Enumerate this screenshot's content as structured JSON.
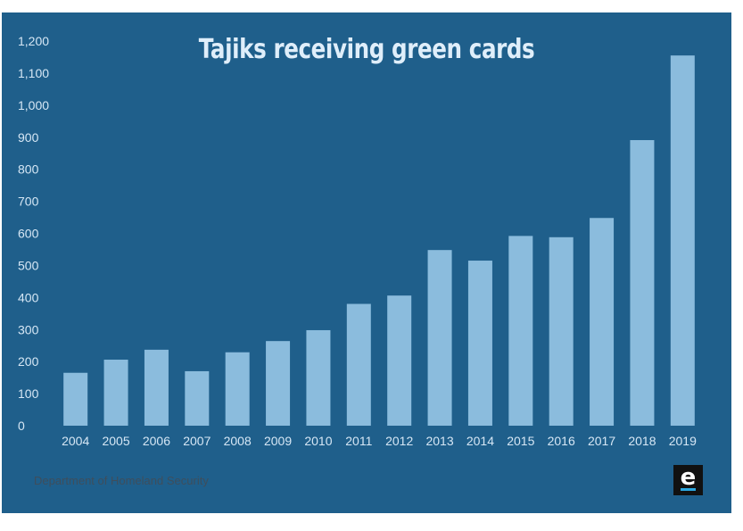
{
  "chart_data": {
    "type": "bar",
    "title": "Tajiks receiving green cards",
    "categories": [
      "2004",
      "2005",
      "2006",
      "2007",
      "2008",
      "2009",
      "2010",
      "2011",
      "2012",
      "2013",
      "2014",
      "2015",
      "2016",
      "2017",
      "2018",
      "2019"
    ],
    "values": [
      165,
      206,
      237,
      170,
      229,
      264,
      298,
      380,
      406,
      548,
      515,
      592,
      588,
      648,
      891,
      1155
    ],
    "ylim": [
      0,
      1200
    ],
    "yticks": [
      0,
      100,
      200,
      300,
      400,
      500,
      600,
      700,
      800,
      900,
      1000,
      1100,
      1200
    ],
    "ytick_labels": [
      "0",
      "100",
      "200",
      "300",
      "400",
      "500",
      "600",
      "700",
      "800",
      "900",
      "1,000",
      "1,100",
      "1,200"
    ],
    "xlabel": "",
    "ylabel": "",
    "grid": false,
    "colors": {
      "background": "#1f5f8b",
      "bar": "#8bbcdd",
      "text": "#d6e7f5"
    }
  },
  "source": "Department of Homeland Security",
  "logo": {
    "letter": "e"
  }
}
